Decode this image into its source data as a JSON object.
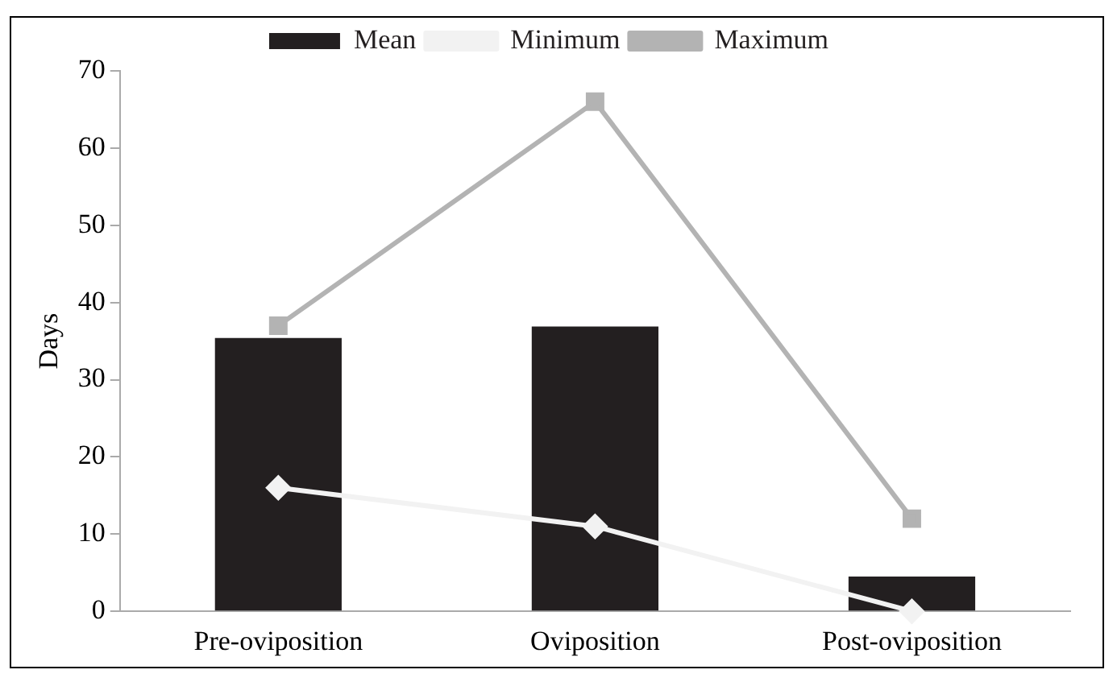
{
  "chart_data": {
    "type": "bar",
    "ylabel": "Days",
    "categories": [
      "Pre-oviposition",
      "Oviposition",
      "Post-oviposition"
    ],
    "series": [
      {
        "name": "Mean",
        "color": "#231f20",
        "values": [
          35.4,
          36.9,
          4.5
        ]
      },
      {
        "name": "Minimum",
        "type": "line",
        "color": "#f2f2f2",
        "marker": "diamond",
        "values": [
          16,
          11,
          0
        ]
      },
      {
        "name": "Maximum",
        "type": "line",
        "color": "#b3b3b3",
        "marker": "square",
        "values": [
          37,
          66,
          12
        ]
      }
    ],
    "ylim": [
      0,
      70
    ],
    "yticks": [
      0,
      10,
      20,
      30,
      40,
      50,
      60,
      70
    ],
    "grid": false,
    "legend": "top"
  }
}
